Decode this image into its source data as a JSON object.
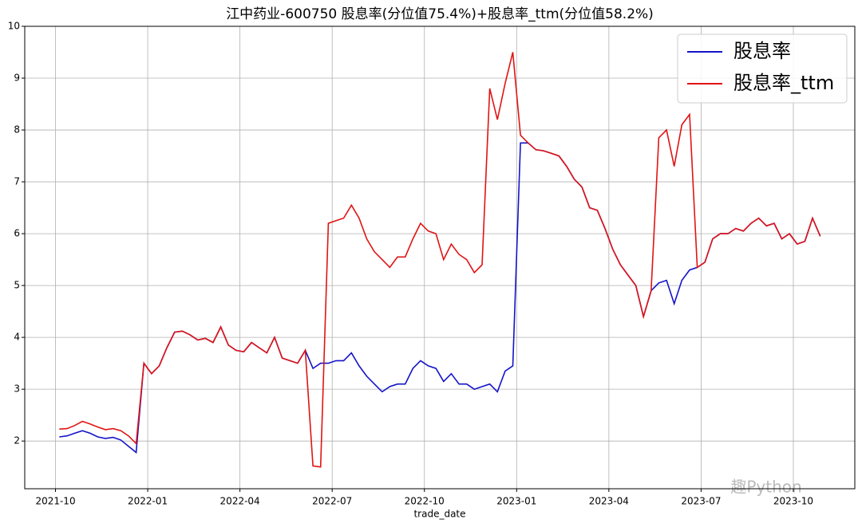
{
  "chart_data": {
    "type": "line",
    "title": "江中药业-600750 股息率(分位值75.4%)+股息率_ttm(分位值58.2%)",
    "xlabel": "trade_date",
    "watermark": "趣Python",
    "x": [
      "2021-10",
      "2021-10",
      "2021-10",
      "2021-10",
      "2021-11",
      "2021-11",
      "2021-11",
      "2021-11",
      "2021-12",
      "2021-12",
      "2021-12",
      "2021-12",
      "2022-01",
      "2022-01",
      "2022-01",
      "2022-01",
      "2022-02",
      "2022-02",
      "2022-02",
      "2022-02",
      "2022-03",
      "2022-03",
      "2022-03",
      "2022-03",
      "2022-04",
      "2022-04",
      "2022-04",
      "2022-04",
      "2022-05",
      "2022-05",
      "2022-05",
      "2022-05",
      "2022-06",
      "2022-06",
      "2022-06",
      "2022-06",
      "2022-07",
      "2022-07",
      "2022-07",
      "2022-07",
      "2022-08",
      "2022-08",
      "2022-08",
      "2022-08",
      "2022-09",
      "2022-09",
      "2022-09",
      "2022-09",
      "2022-10",
      "2022-10",
      "2022-10",
      "2022-10",
      "2022-11",
      "2022-11",
      "2022-11",
      "2022-11",
      "2022-12",
      "2022-12",
      "2022-12",
      "2022-12",
      "2023-01",
      "2023-01",
      "2023-01",
      "2023-01",
      "2023-02",
      "2023-02",
      "2023-02",
      "2023-02",
      "2023-03",
      "2023-03",
      "2023-03",
      "2023-03",
      "2023-04",
      "2023-04",
      "2023-04",
      "2023-04",
      "2023-05",
      "2023-05",
      "2023-05",
      "2023-05",
      "2023-06",
      "2023-06",
      "2023-06",
      "2023-06",
      "2023-07",
      "2023-07",
      "2023-07",
      "2023-07",
      "2023-08",
      "2023-08",
      "2023-08",
      "2023-08",
      "2023-09",
      "2023-09",
      "2023-09",
      "2023-09",
      "2023-10",
      "2023-10",
      "2023-10",
      "2023-10"
    ],
    "series": [
      {
        "name": "股息率",
        "color": "#1414c8",
        "values": [
          2.08,
          2.1,
          2.15,
          2.2,
          2.15,
          2.08,
          2.05,
          2.07,
          2.02,
          1.9,
          1.78,
          3.5,
          3.3,
          3.45,
          3.8,
          4.1,
          4.12,
          4.05,
          3.95,
          3.98,
          3.9,
          4.2,
          3.85,
          3.75,
          3.72,
          3.9,
          3.8,
          3.7,
          4.0,
          3.6,
          3.55,
          3.5,
          3.75,
          3.4,
          3.5,
          3.5,
          3.55,
          3.55,
          3.7,
          3.45,
          3.25,
          3.1,
          2.95,
          3.05,
          3.1,
          3.1,
          3.4,
          3.55,
          3.45,
          3.4,
          3.15,
          3.3,
          3.1,
          3.1,
          3.0,
          3.05,
          3.1,
          2.95,
          3.35,
          3.45,
          7.75,
          7.75,
          7.62,
          7.6,
          7.55,
          7.5,
          7.3,
          7.05,
          6.9,
          6.5,
          6.45,
          6.1,
          5.7,
          5.4,
          5.2,
          5.0,
          4.4,
          4.9,
          5.05,
          5.1,
          4.65,
          5.1,
          5.3,
          5.35,
          5.45,
          5.9,
          6.0,
          6.0,
          6.1,
          6.05,
          6.2,
          6.3,
          6.15,
          6.2,
          5.9,
          6.0,
          5.8,
          5.85,
          6.3,
          5.95
        ]
      },
      {
        "name": "股息率_ttm",
        "color": "#e01414",
        "values": [
          2.23,
          2.24,
          2.3,
          2.38,
          2.33,
          2.27,
          2.22,
          2.24,
          2.2,
          2.1,
          1.95,
          3.5,
          3.3,
          3.45,
          3.8,
          4.1,
          4.12,
          4.05,
          3.95,
          3.98,
          3.9,
          4.2,
          3.85,
          3.75,
          3.72,
          3.9,
          3.8,
          3.7,
          4.0,
          3.6,
          3.55,
          3.5,
          3.75,
          1.52,
          1.5,
          6.2,
          6.25,
          6.3,
          6.55,
          6.3,
          5.9,
          5.65,
          5.5,
          5.35,
          5.55,
          5.55,
          5.9,
          6.2,
          6.05,
          6.0,
          5.5,
          5.8,
          5.6,
          5.5,
          5.25,
          5.4,
          8.8,
          8.2,
          8.9,
          9.5,
          7.9,
          7.75,
          7.62,
          7.6,
          7.55,
          7.5,
          7.3,
          7.05,
          6.9,
          6.5,
          6.45,
          6.1,
          5.7,
          5.4,
          5.2,
          5.0,
          4.4,
          4.9,
          7.85,
          8.0,
          7.3,
          8.1,
          8.3,
          5.35,
          5.45,
          5.9,
          6.0,
          6.0,
          6.1,
          6.05,
          6.2,
          6.3,
          6.15,
          6.2,
          5.9,
          6.0,
          5.8,
          5.85,
          6.3,
          5.95
        ]
      }
    ],
    "xlim": [
      "2021-09",
      "2023-12"
    ],
    "xticks": [
      "2021-10",
      "2022-01",
      "2022-04",
      "2022-07",
      "2022-10",
      "2023-01",
      "2023-04",
      "2023-07",
      "2023-10"
    ],
    "ylim": [
      1.08,
      10
    ],
    "yticks": [
      2,
      3,
      4,
      5,
      6,
      7,
      8,
      9,
      10
    ],
    "grid": true,
    "legend": "upper right"
  }
}
